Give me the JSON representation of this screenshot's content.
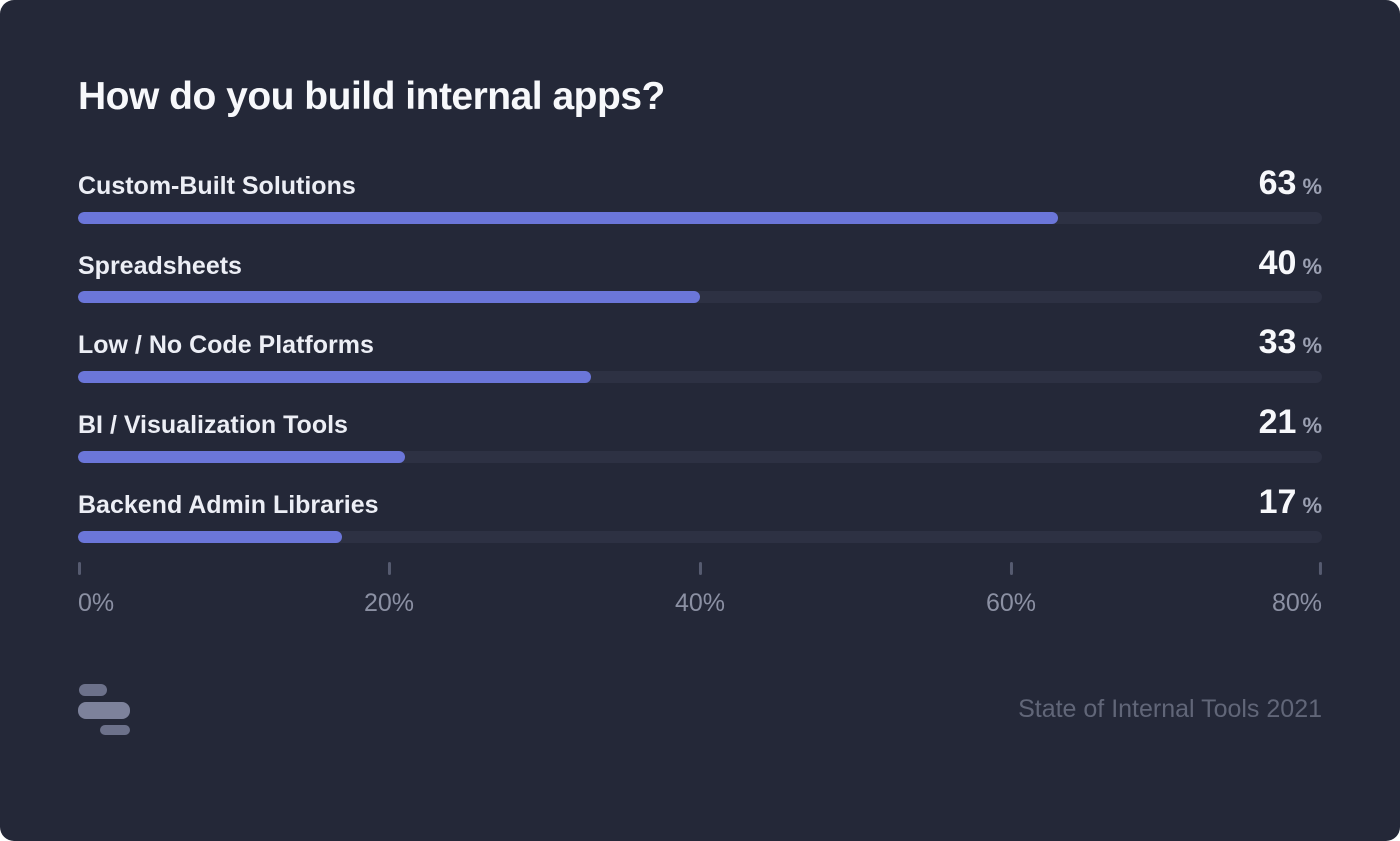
{
  "page": {
    "background": "#ffffff"
  },
  "card": {
    "background": "#242838"
  },
  "footer": {
    "caption": "State of Internal Tools 2021",
    "logo_icon": "three-bars-logo-icon"
  },
  "chart_data": {
    "type": "bar",
    "orientation": "horizontal",
    "title": "How do you build internal apps?",
    "categories": [
      "Custom-Built Solutions",
      "Spreadsheets",
      "Low / No Code Platforms",
      "BI / Visualization Tools",
      "Backend Admin Libraries"
    ],
    "values": [
      63,
      40,
      33,
      21,
      17
    ],
    "value_suffix": "%",
    "xlabel": "",
    "ylabel": "",
    "xlim": [
      0,
      80
    ],
    "x_ticks": [
      {
        "value": 0,
        "label": "0%"
      },
      {
        "value": 20,
        "label": "20%"
      },
      {
        "value": 40,
        "label": "40%"
      },
      {
        "value": 60,
        "label": "60%"
      },
      {
        "value": 80,
        "label": "80%"
      }
    ],
    "grid": false,
    "legend": false,
    "colors": {
      "background": "#242838",
      "bar_fill": "#6b76d9",
      "bar_track": "#2d3143",
      "label_text": "#eceef5",
      "value_text": "#f7f8fb",
      "percent_sign": "#9ba0b2",
      "tick_mark": "#565b70",
      "tick_label": "#8b90a3",
      "caption_text": "#616678",
      "logo_outer": "#6c718a",
      "logo_inner": "#7d829b"
    }
  }
}
